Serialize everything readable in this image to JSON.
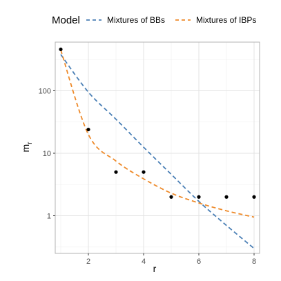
{
  "chart_data": {
    "type": "scatter",
    "title": "",
    "xlabel": "r",
    "ylabel": "m",
    "ylabel_subscript": "r",
    "y_scale": "log10",
    "xlim": [
      0.8,
      8.2
    ],
    "ylim": [
      0.25,
      600
    ],
    "x_ticks": [
      2,
      4,
      6,
      8
    ],
    "x_tick_labels": [
      "2",
      "4",
      "6",
      "8"
    ],
    "y_ticks": [
      1,
      10,
      100
    ],
    "y_tick_labels": [
      "1",
      "10",
      "100"
    ],
    "grid": true,
    "legend_position": "top",
    "legend_title": "Model",
    "points": {
      "x": [
        1,
        2,
        3,
        4,
        5,
        6,
        7,
        8
      ],
      "y": [
        460,
        24,
        5,
        5,
        2,
        2,
        2,
        2
      ]
    },
    "series": [
      {
        "name": "Mixtures of BBs",
        "style": "dashed",
        "color": "#4a7fb5",
        "x": [
          1,
          2,
          3,
          4,
          5,
          6,
          7,
          8
        ],
        "y": [
          380,
          95,
          35,
          12.5,
          4.6,
          1.7,
          0.7,
          0.3
        ]
      },
      {
        "name": "Mixtures of IBPs",
        "style": "dashed",
        "color": "#ee8a2a",
        "x": [
          1,
          2,
          3,
          4,
          5,
          6,
          7,
          8
        ],
        "y": [
          450,
          20,
          7.5,
          3.9,
          2.3,
          1.6,
          1.2,
          0.95
        ]
      }
    ]
  }
}
